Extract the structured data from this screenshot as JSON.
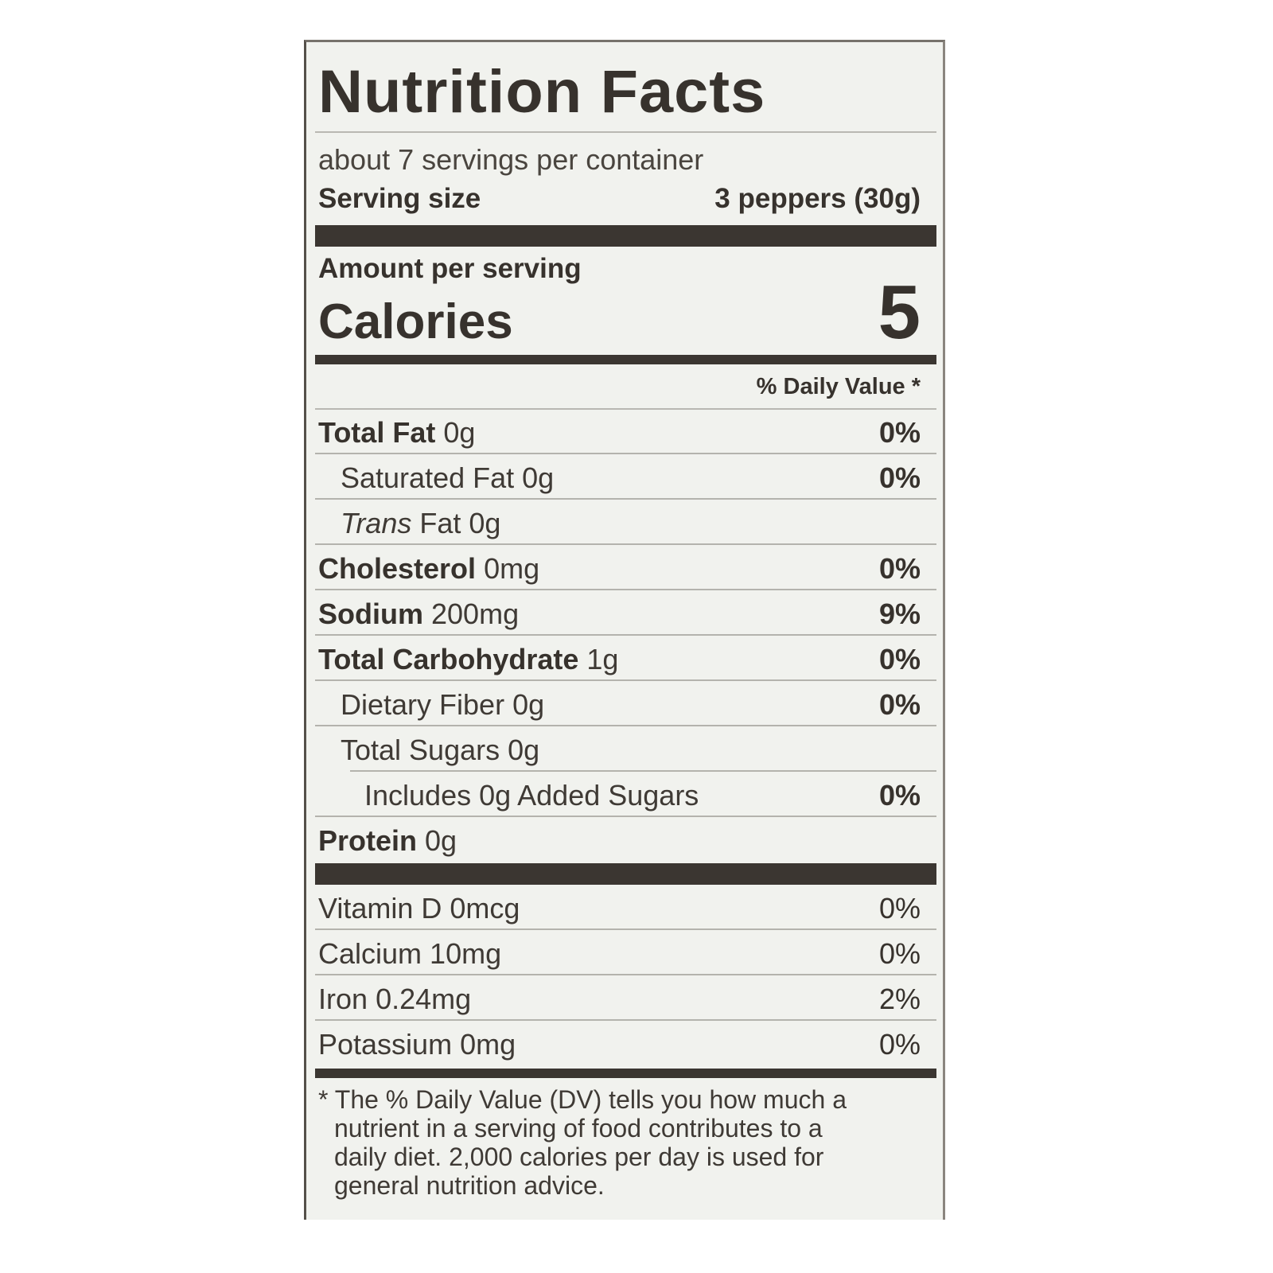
{
  "title": "Nutrition Facts",
  "servings_per_container": "about 7 servings per container",
  "serving_size": {
    "label": "Serving size",
    "value": "3 peppers (30g)"
  },
  "amount_per_serving": "Amount per serving",
  "calories": {
    "label": "Calories",
    "value": "5"
  },
  "daily_value_header": "% Daily Value *",
  "nutrients": [
    {
      "name": "Total Fat",
      "amount": "0g",
      "dv": "0%",
      "bold": true,
      "indent": 0
    },
    {
      "name": "Saturated Fat",
      "amount": "0g",
      "dv": "0%",
      "bold": false,
      "indent": 1
    },
    {
      "name": "Trans",
      "name_suffix": " Fat",
      "amount": "0g",
      "dv": "",
      "bold": false,
      "italic": true,
      "indent": 1
    },
    {
      "name": "Cholesterol",
      "amount": "0mg",
      "dv": "0%",
      "bold": true,
      "indent": 0
    },
    {
      "name": "Sodium",
      "amount": "200mg",
      "dv": "9%",
      "bold": true,
      "indent": 0
    },
    {
      "name": "Total Carbohydrate",
      "amount": "1g",
      "dv": "0%",
      "bold": true,
      "indent": 0
    },
    {
      "name": "Dietary Fiber",
      "amount": "0g",
      "dv": "0%",
      "bold": false,
      "indent": 1
    },
    {
      "name": "Total Sugars",
      "amount": "0g",
      "dv": "",
      "bold": false,
      "indent": 1
    },
    {
      "name": "Includes 0g Added Sugars",
      "amount": "",
      "dv": "0%",
      "bold": false,
      "indent": 2
    },
    {
      "name": "Protein",
      "amount": "0g",
      "dv": "",
      "bold": true,
      "indent": 0
    }
  ],
  "vitamins": [
    {
      "name": "Vitamin D",
      "amount": "0mcg",
      "dv": "0%"
    },
    {
      "name": "Calcium",
      "amount": "10mg",
      "dv": "0%"
    },
    {
      "name": "Iron",
      "amount": "0.24mg",
      "dv": "2%"
    },
    {
      "name": "Potassium",
      "amount": "0mg",
      "dv": "0%"
    }
  ],
  "footnote": [
    "* The % Daily Value (DV) tells you how much a",
    "  nutrient in a serving of food contributes to a",
    "  daily diet. 2,000 calories per day is used for",
    "  general nutrition advice."
  ],
  "colors": {
    "ink": "#37322d",
    "panel": "#f1f2ee",
    "rule": "#3b3631"
  }
}
